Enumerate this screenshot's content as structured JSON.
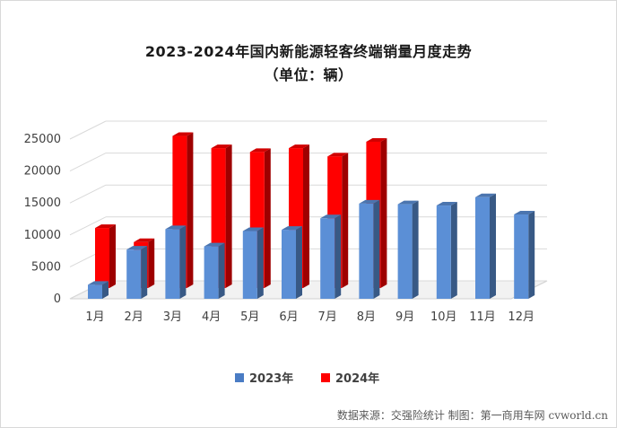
{
  "header": {
    "title": "2023-2024年国内新能源轻客终端销量月度走势",
    "subtitle": "（单位：辆）"
  },
  "footer": {
    "source": "数据来源：交强险统计 制图：第一商用车网 cvworld.cn"
  },
  "colors": {
    "s2023": "#5b8fd6",
    "s2024": "#ff0000"
  },
  "chart_data": {
    "type": "bar",
    "categories": [
      "1月",
      "2月",
      "3月",
      "4月",
      "5月",
      "6月",
      "7月",
      "8月",
      "9月",
      "10月",
      "11月",
      "12月"
    ],
    "series": [
      {
        "name": "2023年",
        "values": [
          2200,
          7700,
          10900,
          8200,
          10600,
          10800,
          12600,
          14900,
          14800,
          14600,
          15900,
          13200
        ]
      },
      {
        "name": "2024年",
        "values": [
          9400,
          7200,
          23800,
          21900,
          21300,
          21900,
          20600,
          22900,
          null,
          null,
          null,
          null
        ]
      }
    ],
    "y_ticks": [
      0,
      5000,
      10000,
      15000,
      20000,
      25000
    ],
    "ylim": [
      0,
      25000
    ],
    "grid": true,
    "legend_position": "bottom"
  }
}
